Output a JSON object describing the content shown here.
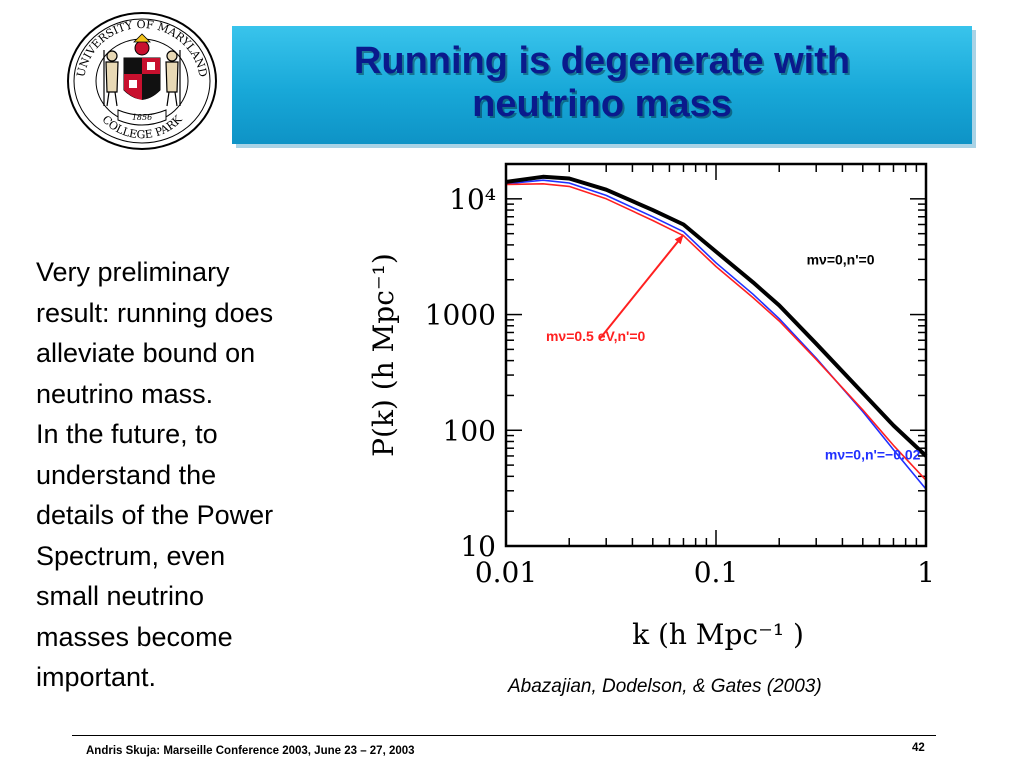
{
  "slide": {
    "title_line1": "Running is degenerate with",
    "title_line2": "neutrino mass",
    "body_lines": [
      "Very preliminary",
      "result: running does",
      "alleviate bound on",
      "neutrino mass.",
      "In the future, to",
      "understand the",
      "details of the Power",
      "Spectrum, even",
      "small neutrino",
      "masses become",
      "important."
    ],
    "citation": "Abazajian, Dodelson, & Gates (2003)",
    "footer": "Andris Skuja: Marseille Conference 2003, June 23 – 27, 2003",
    "page_number": "42",
    "seal": {
      "top_text": "UNIVERSITY OF MARYLAND",
      "bottom_text": "COLLEGE PARK",
      "year": "1856"
    }
  },
  "chart_data": {
    "type": "line",
    "xscale": "log",
    "yscale": "log",
    "xlim": [
      0.01,
      1
    ],
    "ylim": [
      10,
      20000
    ],
    "xlabel": "k (h Mpc⁻¹ )",
    "ylabel": "P(k) (h Mpc⁻¹)",
    "xtick_labels": [
      "0.01",
      "0.1",
      "1"
    ],
    "ytick_labels": [
      "10",
      "100",
      "1000",
      "10⁴"
    ],
    "x": [
      0.01,
      0.015,
      0.02,
      0.03,
      0.05,
      0.07,
      0.1,
      0.15,
      0.2,
      0.3,
      0.5,
      0.7,
      1.0
    ],
    "series": [
      {
        "name": "mν=0,n'=0",
        "color": "#000000",
        "values": [
          14000,
          15500,
          15000,
          12000,
          8000,
          6000,
          3500,
          1900,
          1200,
          560,
          210,
          110,
          60
        ]
      },
      {
        "name": "mν=0.5 eV,n'=0",
        "color": "#ff2020",
        "values": [
          13300,
          13500,
          12800,
          10000,
          6500,
          4800,
          2600,
          1400,
          880,
          410,
          150,
          74,
          37
        ]
      },
      {
        "name": "mν=0,n'=−0.02",
        "color": "#2030ff",
        "values": [
          13500,
          14500,
          13700,
          10700,
          7000,
          5200,
          2800,
          1500,
          920,
          420,
          145,
          68,
          31
        ]
      }
    ],
    "annotations": [
      {
        "text": "mν=0,n'=0",
        "color": "#000000"
      },
      {
        "text": "mν=0.5 eV,n'=0",
        "color": "#ff2020"
      },
      {
        "text": "mν=0,n'=−0.02",
        "color": "#2030ff"
      }
    ],
    "grid": false
  }
}
